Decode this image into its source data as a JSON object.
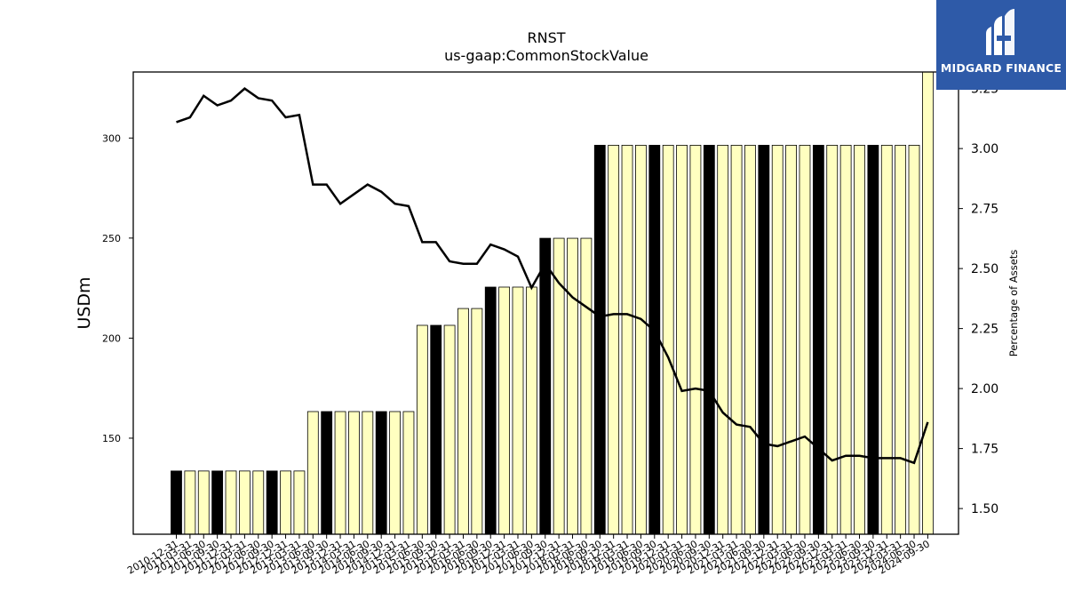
{
  "logo": {
    "text": "MIDGARD FINANCE"
  },
  "chart_data": {
    "type": "bar",
    "title": "RNST",
    "subtitle": "us-gaap:CommonStockValue",
    "ylabel": "USDm",
    "y2label": "Percentage of Assets",
    "ylim": [
      102,
      333
    ],
    "y2lim": [
      1.393,
      3.319
    ],
    "yticks": [
      150,
      200,
      250,
      300
    ],
    "y2ticks": [
      "1.50",
      "1.75",
      "2.00",
      "2.25",
      "2.50",
      "2.75",
      "3.00",
      "3.25"
    ],
    "grid": false,
    "colors": {
      "bar": "#ffffc0",
      "bar_highlight": "#000000",
      "line": "#000000"
    },
    "categories": [
      "2010-12-31",
      "2011-03-31",
      "2011-06-30",
      "2011-09-30",
      "2011-12-31",
      "2012-03-31",
      "2012-06-30",
      "2012-09-30",
      "2012-12-31",
      "2013-03-31",
      "2013-06-30",
      "2013-09-30",
      "2013-12-31",
      "2014-03-31",
      "2014-06-30",
      "2014-09-30",
      "2014-12-31",
      "2015-03-31",
      "2015-06-30",
      "2015-09-30",
      "2015-12-31",
      "2016-03-31",
      "2016-06-30",
      "2016-09-30",
      "2016-12-31",
      "2017-03-31",
      "2017-06-30",
      "2017-09-30",
      "2017-12-31",
      "2018-03-31",
      "2018-06-30",
      "2018-09-30",
      "2018-12-31",
      "2019-03-31",
      "2019-06-30",
      "2019-09-30",
      "2019-12-31",
      "2020-03-31",
      "2020-06-30",
      "2020-09-30",
      "2020-12-31",
      "2021-03-31",
      "2021-06-30",
      "2021-09-30",
      "2021-12-31",
      "2022-03-31",
      "2022-06-30",
      "2022-09-30",
      "2022-12-31",
      "2023-03-31",
      "2023-06-30",
      "2023-09-30",
      "2023-12-31",
      "2024-03-31",
      "2024-06-30",
      "2024-09-30"
    ],
    "highlight": [
      true,
      false,
      false,
      true,
      false,
      false,
      false,
      true,
      false,
      false,
      false,
      true,
      false,
      false,
      false,
      true,
      false,
      false,
      false,
      true,
      false,
      false,
      false,
      true,
      false,
      false,
      false,
      true,
      false,
      false,
      false,
      true,
      false,
      false,
      false,
      true,
      false,
      false,
      false,
      true,
      false,
      false,
      false,
      true,
      false,
      false,
      false,
      true,
      false,
      false,
      false,
      true,
      false,
      false,
      false,
      false
    ],
    "series": [
      {
        "name": "CommonStockValue (USDm)",
        "kind": "bar",
        "values": [
          133.6,
          133.6,
          133.6,
          133.6,
          133.6,
          133.6,
          133.6,
          133.6,
          133.6,
          133.6,
          163.3,
          163.3,
          163.3,
          163.3,
          163.3,
          163.3,
          163.3,
          163.3,
          206.4,
          206.4,
          206.4,
          214.8,
          214.8,
          225.5,
          225.5,
          225.5,
          225.5,
          249.9,
          249.9,
          249.9,
          249.9,
          296.4,
          296.4,
          296.4,
          296.4,
          296.4,
          296.4,
          296.4,
          296.4,
          296.4,
          296.4,
          296.4,
          296.4,
          296.4,
          296.4,
          296.4,
          296.4,
          296.4,
          296.4,
          296.4,
          296.4,
          296.4,
          296.4,
          296.4,
          296.4,
          333.0
        ]
      },
      {
        "name": "Percentage of Assets",
        "kind": "line",
        "axis": "right",
        "values": [
          3.11,
          3.13,
          3.22,
          3.18,
          3.2,
          3.25,
          3.21,
          3.2,
          3.13,
          3.14,
          2.85,
          2.85,
          2.77,
          2.81,
          2.85,
          2.82,
          2.77,
          2.76,
          2.61,
          2.61,
          2.53,
          2.52,
          2.52,
          2.6,
          2.58,
          2.55,
          2.42,
          2.52,
          2.44,
          2.38,
          2.34,
          2.3,
          2.31,
          2.31,
          2.29,
          2.24,
          2.13,
          1.99,
          2.0,
          1.99,
          1.9,
          1.85,
          1.84,
          1.77,
          1.76,
          1.78,
          1.8,
          1.75,
          1.7,
          1.72,
          1.72,
          1.71,
          1.71,
          1.71,
          1.69,
          1.86
        ]
      }
    ]
  }
}
